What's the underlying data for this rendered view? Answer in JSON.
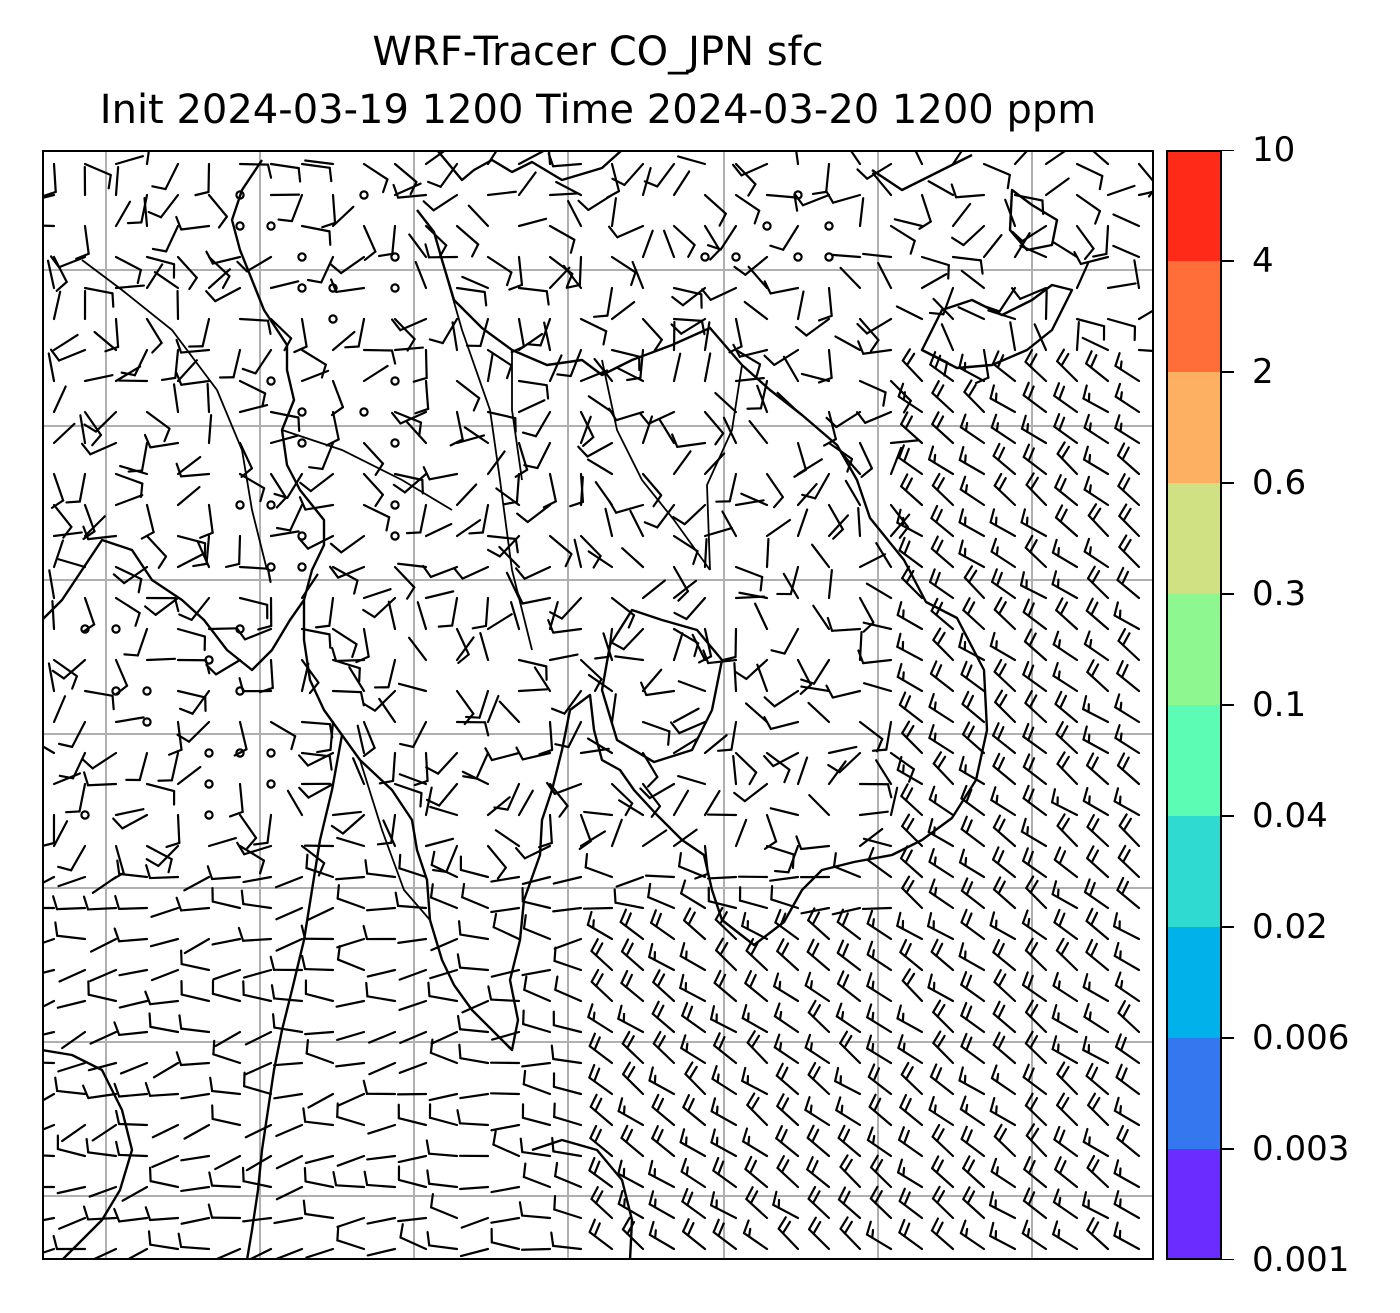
{
  "title": {
    "line1": "WRF-Tracer CO_JPN sfc",
    "line2": "Init 2024-03-19 1200 Time 2024-03-20 1200 ppm"
  },
  "map": {
    "background": "#ffffff",
    "gridline_color": "#b0b0b0",
    "coastline_color": "#000000",
    "barb_color": "#000000",
    "gridlines": true,
    "features": [
      "coastlines",
      "country borders",
      "wind barbs"
    ]
  },
  "colorbar": {
    "tick_labels": [
      "0.001",
      "0.003",
      "0.006",
      "0.02",
      "0.04",
      "0.1",
      "0.3",
      "0.6",
      "2",
      "4",
      "10"
    ],
    "colors": [
      "#6a2cff",
      "#3577ef",
      "#00b2e9",
      "#2fdbd0",
      "#5dfcb4",
      "#8ff78f",
      "#cfe183",
      "#fdb061",
      "#ff6d39",
      "#ff2a18"
    ]
  }
}
